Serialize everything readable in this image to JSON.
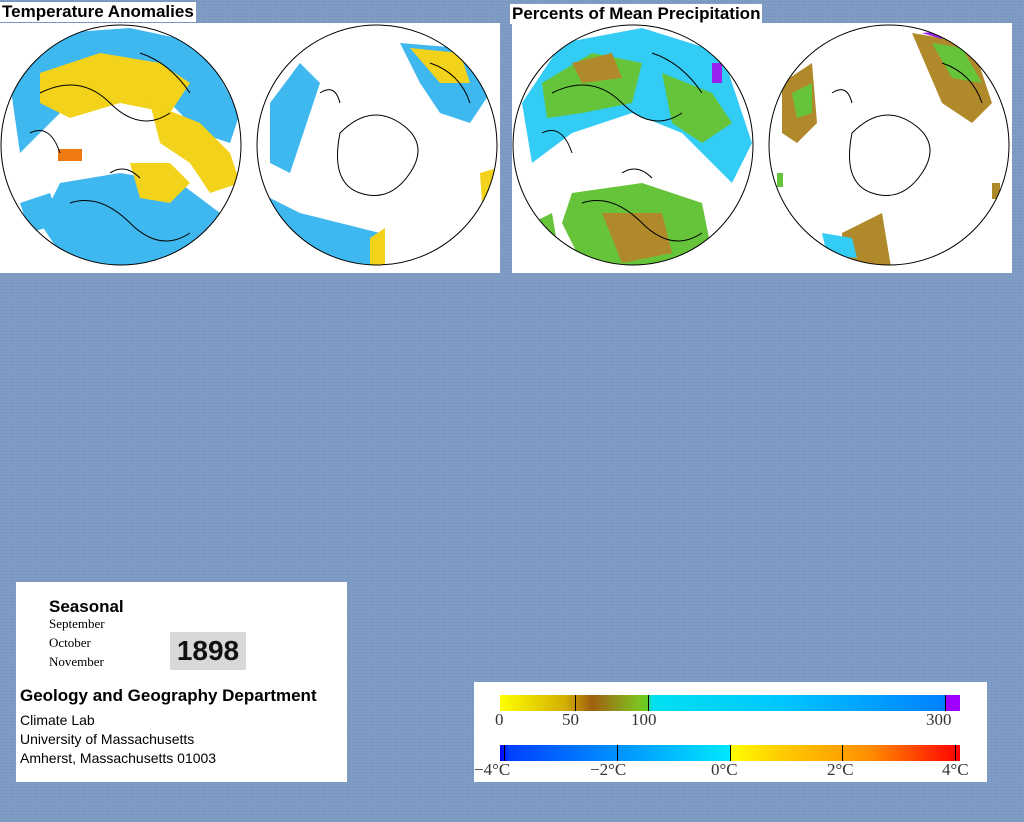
{
  "temperature_panel": {
    "title": "Temperature Anomalies"
  },
  "precip_panel": {
    "title": "Percents of Mean Precipitation"
  },
  "info": {
    "season": "Seasonal",
    "months": [
      "September",
      "October",
      "November"
    ],
    "year": "1898",
    "department": "Geology and Geography Department",
    "lines": [
      "Climate Lab",
      "University of Massachusetts",
      "Amherst, Massachusetts 01003"
    ]
  },
  "precip_legend": {
    "ticks": [
      "0",
      "50",
      "100",
      "300"
    ],
    "colors": [
      "#ffff00",
      "#c8a000",
      "#a06010",
      "#66cc22",
      "#00e0f0",
      "#0080ff",
      "#a000ff"
    ]
  },
  "temp_legend": {
    "ticks": [
      "−4°C",
      "−2°C",
      "0°C",
      "2°C",
      "4°C"
    ],
    "colors": [
      "#0000ff",
      "#00a0ff",
      "#00e8ff",
      "#ffff00",
      "#ff9000",
      "#ff0000"
    ]
  },
  "map_colors": {
    "cool": "#3fb8f0",
    "cool_light": "#33ccf5",
    "warm": "#f2d21a",
    "hot": "#ee7a10",
    "dry": "#b08a2a",
    "green": "#66c43a",
    "purple": "#9a22ee"
  }
}
